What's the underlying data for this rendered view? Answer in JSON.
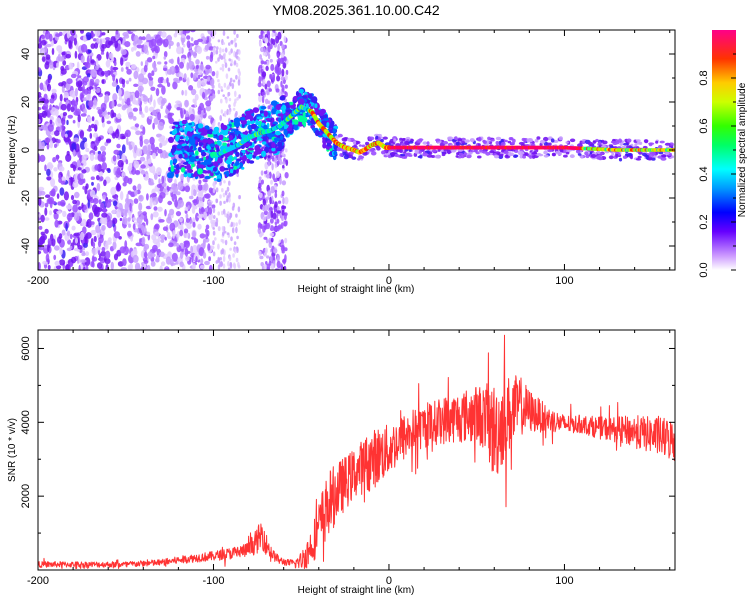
{
  "title": "YM08.2025.361.10.00.C42",
  "chart_data": [
    {
      "type": "heatmap",
      "name": "spectrogram",
      "xlabel": "Height of straight line (km)",
      "ylabel": "Frequency (Hz)",
      "xlim": [
        -200,
        163
      ],
      "ylim": [
        -50,
        50
      ],
      "xticks": [
        -200,
        -100,
        0,
        100
      ],
      "xtick_labels": [
        "-200",
        "-100",
        "0",
        "100"
      ],
      "yticks": [
        -40,
        -20,
        0,
        20,
        40
      ],
      "ytick_labels": [
        "-40",
        "-20",
        "0",
        "20",
        "40"
      ],
      "colorbar": {
        "label": "Normalized spectral amplitude",
        "range": [
          0.0,
          1.0
        ],
        "ticks": [
          0.0,
          0.2,
          0.4,
          0.6,
          0.8
        ],
        "tick_labels": [
          "0.0",
          "0.2",
          "0.4",
          "0.6",
          "0.8"
        ],
        "colormap": [
          "#ffffff",
          "#9933ff",
          "#0000ff",
          "#00ffff",
          "#00ff00",
          "#ffff00",
          "#ff0000",
          "#ff00aa"
        ]
      },
      "ridge": {
        "x": [
          -125,
          -118,
          -110,
          -104,
          -98,
          -92,
          -86,
          -80,
          -74,
          -68,
          -62,
          -56,
          -50,
          -44,
          -40,
          -35,
          -30,
          -25,
          -20,
          -17,
          -14,
          -10,
          -6,
          -2,
          2,
          10,
          30,
          60,
          100,
          130,
          163
        ],
        "frequency": [
          0,
          1,
          0,
          -1,
          -2,
          0,
          2,
          5,
          7,
          8,
          10,
          14,
          18,
          16,
          11,
          7,
          3,
          1,
          0,
          -1,
          0,
          2,
          3,
          1,
          1,
          1,
          1,
          1,
          1,
          0,
          0
        ]
      }
    },
    {
      "type": "line",
      "name": "snr",
      "xlabel": "Height of straight line (km)",
      "ylabel": "SNR (10 * v/v)",
      "xlim": [
        -200,
        163
      ],
      "ylim": [
        0,
        6500
      ],
      "xticks": [
        -200,
        -100,
        0,
        100
      ],
      "xtick_labels": [
        "-200",
        "-100",
        "0",
        "100"
      ],
      "yticks": [
        2000,
        4000,
        6000
      ],
      "ytick_labels": [
        "2000",
        "4000",
        "6000"
      ],
      "color": "#ff3333",
      "envelope": {
        "x": [
          -200,
          -150,
          -130,
          -115,
          -100,
          -90,
          -80,
          -75,
          -72,
          -70,
          -66,
          -62,
          -58,
          -54,
          -50,
          -46,
          -42,
          -38,
          -34,
          -30,
          -26,
          -22,
          -18,
          -12,
          -6,
          0,
          6,
          12,
          18,
          24,
          30,
          40,
          50,
          55,
          60,
          65,
          70,
          75,
          80,
          90,
          100,
          110,
          120,
          130,
          140,
          150,
          163
        ],
        "mean": [
          150,
          150,
          200,
          300,
          380,
          450,
          550,
          800,
          1000,
          700,
          400,
          250,
          200,
          180,
          250,
          500,
          900,
          1400,
          1800,
          2100,
          2300,
          2500,
          2700,
          2900,
          3100,
          3250,
          3500,
          3700,
          3850,
          3950,
          4050,
          4150,
          4200,
          4150,
          3700,
          4050,
          4300,
          4450,
          4300,
          4100,
          3950,
          3950,
          3850,
          3800,
          3750,
          3650,
          3500
        ],
        "amp": [
          80,
          80,
          90,
          110,
          130,
          160,
          200,
          350,
          450,
          300,
          150,
          110,
          90,
          100,
          250,
          450,
          600,
          800,
          900,
          800,
          750,
          700,
          700,
          800,
          800,
          700,
          650,
          650,
          600,
          600,
          650,
          700,
          800,
          900,
          1400,
          1200,
          1000,
          800,
          600,
          350,
          250,
          250,
          300,
          350,
          450,
          500,
          600
        ]
      }
    }
  ]
}
